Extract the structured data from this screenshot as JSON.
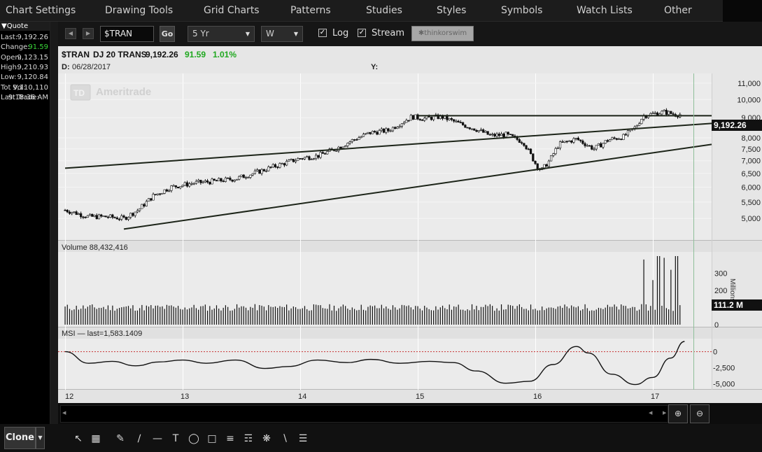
{
  "menu": {
    "items": [
      "Chart Settings",
      "Drawing Tools",
      "Grid Charts",
      "Patterns",
      "Studies",
      "Styles",
      "Symbols",
      "Watch Lists",
      "Other"
    ]
  },
  "quote": {
    "header": "Quote",
    "rows": [
      {
        "label": "Last:",
        "value": "9,192.26",
        "color": "#d8d8d8"
      },
      {
        "label": "Change:",
        "value": "91.59",
        "color": "#39d539"
      },
      {
        "label": "Open:",
        "value": "9,123.15",
        "color": "#d8d8d8"
      },
      {
        "label": "High:",
        "value": "9,210.93",
        "color": "#d8d8d8"
      },
      {
        "label": "Low:",
        "value": "9,120.84",
        "color": "#d8d8d8"
      },
      {
        "label": "Tot Vol:",
        "value": "9,110,110",
        "color": "#d8d8d8"
      },
      {
        "label": "Last Trade:",
        "value": "9:18:36 AM",
        "color": "#d8d8d8"
      }
    ]
  },
  "toolbar": {
    "symbol": "$TRAN",
    "go_label": "Go",
    "period": "5 Yr",
    "interval": "W",
    "log_label": "Log",
    "stream_label": "Stream",
    "logo_label": "thinkorswim",
    "log_checked": true,
    "stream_checked": true
  },
  "chart_header": {
    "symbol": "$TRAN",
    "name": "DJ 20 TRANS",
    "last": "9,192.26",
    "change": "91.59",
    "change_pct": "1.01%",
    "date_label": "D:",
    "date": "06/28/2017",
    "y_label": "Y:",
    "watermark": "Ameritrade",
    "watermark_badge": "TD",
    "accent_up": "#1fa81f"
  },
  "chart_data": [
    {
      "type": "candlestick",
      "title": "$TRAN DJ 20 TRANS",
      "scale": "log",
      "ylim": [
        4500,
        11500
      ],
      "y_ticks": [
        "11,000",
        "10,000",
        "9,000",
        "8,000",
        "7,500",
        "7,000",
        "6,500",
        "6,000",
        "5,500",
        "5,000"
      ],
      "y_tick_values": [
        11000,
        10000,
        9000,
        8000,
        7500,
        7000,
        6500,
        6000,
        5500,
        5000
      ],
      "last_price_label": "9,192.26",
      "x_ticks": [
        "12",
        "13",
        "14",
        "15",
        "16",
        "17"
      ],
      "x_tick_dates": [
        2012.0,
        2013.0,
        2014.0,
        2015.0,
        2016.0,
        2017.0
      ],
      "xlim": [
        2011.97,
        2017.5
      ],
      "weekly_close_path": [
        [
          2012.0,
          5250
        ],
        [
          2012.1,
          5150
        ],
        [
          2012.2,
          5050
        ],
        [
          2012.35,
          5050
        ],
        [
          2012.5,
          5000
        ],
        [
          2012.62,
          5250
        ],
        [
          2012.75,
          5700
        ],
        [
          2012.9,
          6000
        ],
        [
          2013.1,
          6150
        ],
        [
          2013.25,
          6200
        ],
        [
          2013.45,
          6300
        ],
        [
          2013.6,
          6500
        ],
        [
          2013.8,
          6800
        ],
        [
          2014.0,
          7100
        ],
        [
          2014.15,
          7200
        ],
        [
          2014.3,
          7500
        ],
        [
          2014.45,
          7900
        ],
        [
          2014.6,
          8250
        ],
        [
          2014.75,
          8350
        ],
        [
          2014.85,
          8700
        ],
        [
          2014.95,
          9050
        ],
        [
          2015.05,
          8950
        ],
        [
          2015.2,
          9050
        ],
        [
          2015.35,
          8700
        ],
        [
          2015.5,
          8400
        ],
        [
          2015.62,
          8100
        ],
        [
          2015.75,
          8150
        ],
        [
          2015.9,
          7800
        ],
        [
          2016.0,
          6900
        ],
        [
          2016.05,
          6600
        ],
        [
          2016.12,
          7000
        ],
        [
          2016.2,
          7700
        ],
        [
          2016.35,
          7950
        ],
        [
          2016.5,
          7500
        ],
        [
          2016.62,
          7900
        ],
        [
          2016.75,
          8050
        ],
        [
          2016.85,
          8500
        ],
        [
          2016.92,
          9100
        ],
        [
          2017.0,
          9200
        ],
        [
          2017.1,
          9300
        ],
        [
          2017.2,
          9150
        ],
        [
          2017.24,
          9192
        ]
      ],
      "trendlines": [
        {
          "from": [
            2012.0,
            6700
          ],
          "to": [
            2017.5,
            8700
          ]
        },
        {
          "from": [
            2012.5,
            4700
          ],
          "to": [
            2017.5,
            7700
          ]
        },
        {
          "from": [
            2015.0,
            9100
          ],
          "to": [
            2017.5,
            9100
          ]
        }
      ]
    },
    {
      "type": "bar",
      "title": "Volume",
      "label": "Volume 88,432,416",
      "unit_label": "Millions",
      "y_ticks": [
        "300",
        "200",
        "0"
      ],
      "y_tick_values": [
        300,
        200,
        0
      ],
      "ylim": [
        0,
        400
      ],
      "last_label": "111.2 M",
      "typical_weekly_volume": [
        80,
        120
      ],
      "spikes": [
        [
          2016.93,
          380
        ],
        [
          2017.0,
          260
        ],
        [
          2017.05,
          400
        ],
        [
          2017.1,
          390
        ],
        [
          2017.15,
          320
        ],
        [
          2017.2,
          400
        ]
      ]
    },
    {
      "type": "line",
      "title": "MSI",
      "label": "MSI — last=1,583.1409",
      "y_ticks": [
        "0",
        "-2,500",
        "-5,000"
      ],
      "y_tick_values": [
        0,
        -2500,
        -5000
      ],
      "ylim": [
        -5800,
        1800
      ],
      "zero_line_color": "#c83232",
      "points": [
        [
          2012.0,
          0
        ],
        [
          2012.2,
          -1800
        ],
        [
          2012.4,
          -1500
        ],
        [
          2012.6,
          -2200
        ],
        [
          2012.8,
          -1600
        ],
        [
          2013.0,
          -1300
        ],
        [
          2013.2,
          -1800
        ],
        [
          2013.45,
          -1300
        ],
        [
          2013.7,
          -2600
        ],
        [
          2013.9,
          -2300
        ],
        [
          2014.15,
          -1300
        ],
        [
          2014.4,
          -1700
        ],
        [
          2014.6,
          -1200
        ],
        [
          2014.85,
          -1800
        ],
        [
          2015.1,
          -1500
        ],
        [
          2015.3,
          -1700
        ],
        [
          2015.5,
          -3000
        ],
        [
          2015.75,
          -4900
        ],
        [
          2015.95,
          -4600
        ],
        [
          2016.15,
          -2000
        ],
        [
          2016.35,
          800
        ],
        [
          2016.45,
          -200
        ],
        [
          2016.65,
          -3500
        ],
        [
          2016.85,
          -5100
        ],
        [
          2017.0,
          -4000
        ],
        [
          2017.15,
          -1000
        ],
        [
          2017.27,
          1583
        ]
      ]
    }
  ],
  "clone_label": "Clone"
}
